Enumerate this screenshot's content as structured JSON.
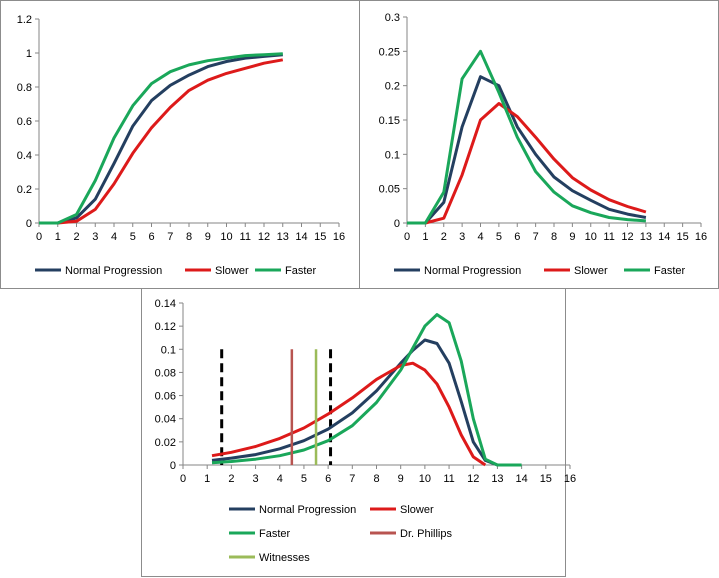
{
  "chart_data": [
    {
      "type": "line",
      "x": [
        0,
        1,
        2,
        3,
        4,
        5,
        6,
        7,
        8,
        9,
        10,
        11,
        12,
        13
      ],
      "xlim": [
        0,
        16
      ],
      "xticks": [
        0,
        1,
        2,
        3,
        4,
        5,
        6,
        7,
        8,
        9,
        10,
        11,
        12,
        13,
        14,
        15,
        16
      ],
      "ylim": [
        0,
        1.2
      ],
      "yticks": [
        "0",
        "0.2",
        "0.4",
        "0.6",
        "0.8",
        "1",
        "1.2"
      ],
      "grid": false,
      "legend_position": "bottom",
      "series": [
        {
          "name": "Normal Progression",
          "color": "#243f60",
          "values": [
            0,
            0,
            0.03,
            0.14,
            0.35,
            0.57,
            0.72,
            0.81,
            0.87,
            0.92,
            0.95,
            0.97,
            0.98,
            0.99
          ]
        },
        {
          "name": "Slower",
          "color": "#dd1a1a",
          "values": [
            0,
            0,
            0.01,
            0.08,
            0.23,
            0.41,
            0.56,
            0.68,
            0.78,
            0.84,
            0.88,
            0.91,
            0.94,
            0.96
          ]
        },
        {
          "name": "Faster",
          "color": "#1aa75a",
          "values": [
            0,
            0,
            0.05,
            0.25,
            0.5,
            0.69,
            0.82,
            0.89,
            0.93,
            0.955,
            0.97,
            0.985,
            0.99,
            0.995
          ]
        }
      ]
    },
    {
      "type": "line",
      "x": [
        0,
        1,
        2,
        3,
        4,
        5,
        6,
        7,
        8,
        9,
        10,
        11,
        12,
        13
      ],
      "xlim": [
        0,
        16
      ],
      "xticks": [
        0,
        1,
        2,
        3,
        4,
        5,
        6,
        7,
        8,
        9,
        10,
        11,
        12,
        13,
        14,
        15,
        16
      ],
      "ylim": [
        0,
        0.3
      ],
      "yticks": [
        "0",
        "0.05",
        "0.1",
        "0.15",
        "0.2",
        "0.25",
        "0.3"
      ],
      "grid": false,
      "legend_position": "bottom",
      "series": [
        {
          "name": "Normal Progression",
          "color": "#243f60",
          "values": [
            0,
            0,
            0.03,
            0.14,
            0.213,
            0.2,
            0.14,
            0.1,
            0.067,
            0.047,
            0.033,
            0.02,
            0.013,
            0.008
          ]
        },
        {
          "name": "Slower",
          "color": "#dd1a1a",
          "values": [
            0,
            0,
            0.007,
            0.07,
            0.15,
            0.174,
            0.155,
            0.125,
            0.093,
            0.066,
            0.048,
            0.034,
            0.024,
            0.016
          ]
        },
        {
          "name": "Faster",
          "color": "#1aa75a",
          "values": [
            0,
            0,
            0.045,
            0.21,
            0.25,
            0.19,
            0.125,
            0.075,
            0.045,
            0.025,
            0.015,
            0.008,
            0.005,
            0.003
          ]
        }
      ]
    },
    {
      "type": "line",
      "xlim": [
        0,
        16
      ],
      "xticks": [
        0,
        1,
        2,
        3,
        4,
        5,
        6,
        7,
        8,
        9,
        10,
        11,
        12,
        13,
        14,
        15,
        16
      ],
      "ylim": [
        0,
        0.14
      ],
      "yticks": [
        "0",
        "0.02",
        "0.04",
        "0.06",
        "0.08",
        "0.1",
        "0.12",
        "0.14"
      ],
      "grid": false,
      "legend_position": "bottom",
      "series": [
        {
          "name": "Normal Progression",
          "color": "#243f60",
          "points": [
            [
              1.2,
              0.004
            ],
            [
              2,
              0.006
            ],
            [
              3,
              0.009
            ],
            [
              4,
              0.014
            ],
            [
              5,
              0.021
            ],
            [
              6,
              0.031
            ],
            [
              7,
              0.045
            ],
            [
              8,
              0.064
            ],
            [
              9,
              0.088
            ],
            [
              9.5,
              0.099
            ],
            [
              10,
              0.108
            ],
            [
              10.5,
              0.105
            ],
            [
              11,
              0.088
            ],
            [
              11.5,
              0.055
            ],
            [
              12,
              0.02
            ],
            [
              12.5,
              0.004
            ],
            [
              13,
              0
            ]
          ]
        },
        {
          "name": "Slower",
          "color": "#dd1a1a",
          "points": [
            [
              1.2,
              0.008
            ],
            [
              2,
              0.011
            ],
            [
              3,
              0.016
            ],
            [
              4,
              0.023
            ],
            [
              5,
              0.032
            ],
            [
              6,
              0.044
            ],
            [
              7,
              0.058
            ],
            [
              8,
              0.074
            ],
            [
              9,
              0.086
            ],
            [
              9.5,
              0.088
            ],
            [
              10,
              0.082
            ],
            [
              10.5,
              0.07
            ],
            [
              11,
              0.05
            ],
            [
              11.5,
              0.026
            ],
            [
              12,
              0.007
            ],
            [
              12.5,
              0
            ]
          ]
        },
        {
          "name": "Faster",
          "color": "#1aa75a",
          "points": [
            [
              1.2,
              0.002
            ],
            [
              2,
              0.003
            ],
            [
              3,
              0.005
            ],
            [
              4,
              0.008
            ],
            [
              5,
              0.013
            ],
            [
              6,
              0.021
            ],
            [
              7,
              0.034
            ],
            [
              8,
              0.054
            ],
            [
              9,
              0.082
            ],
            [
              10,
              0.12
            ],
            [
              10.5,
              0.13
            ],
            [
              11,
              0.123
            ],
            [
              11.5,
              0.09
            ],
            [
              12,
              0.04
            ],
            [
              12.5,
              0.005
            ],
            [
              13,
              0
            ],
            [
              14,
              0
            ]
          ]
        },
        {
          "name": "Dr. Phillips",
          "color": "#b85450",
          "vline_x": 4.5
        },
        {
          "name": "Witnesses",
          "color": "#9bbb59",
          "vline_x": 5.5
        }
      ],
      "dashed_markers": [
        1.6,
        6.1
      ],
      "marker_top": 0.1
    }
  ]
}
